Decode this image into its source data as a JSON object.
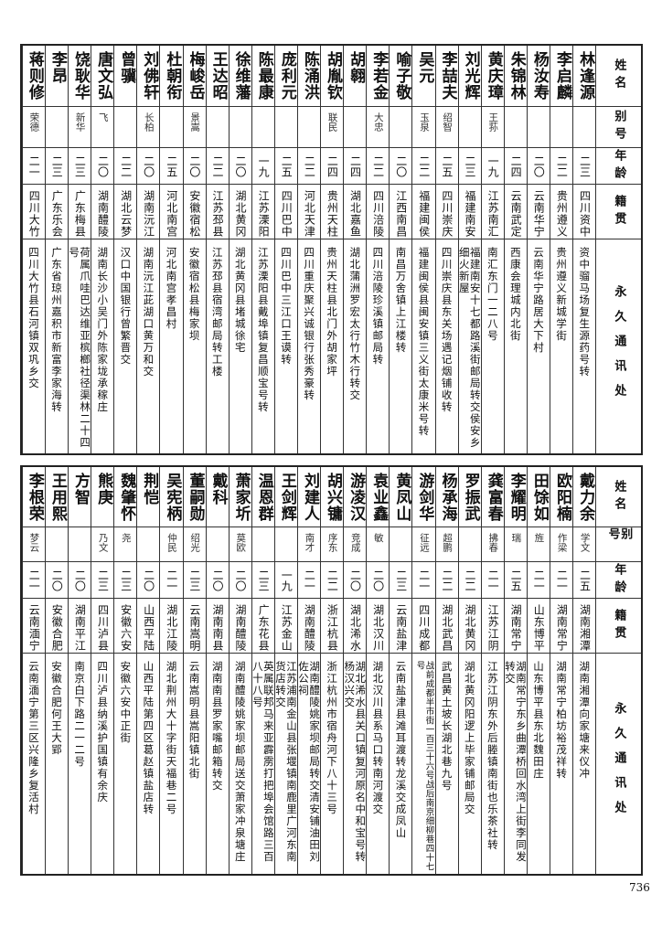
{
  "headers": {
    "name": "姓名",
    "alias": "别号",
    "age": "年龄",
    "origin": "籍贯",
    "address": "永久通讯处"
  },
  "tables": [
    {
      "rows": [
        {
          "name": "林逢源",
          "alias": "",
          "age": "二三",
          "origin": "四川资中",
          "address": "资中骝马场复生源药号转"
        },
        {
          "name": "李启麟",
          "alias": "",
          "age": "二二",
          "origin": "贵州遵义",
          "address": "贵州遵义新城学街"
        },
        {
          "name": "杨汝寿",
          "alias": "",
          "age": "二〇",
          "origin": "云南华宁",
          "address": "云南华宁路居大下村"
        },
        {
          "name": "朱锦林",
          "alias": "",
          "age": "二四",
          "origin": "云南武定",
          "address": "西康会理城内北街"
        },
        {
          "name": "黄庆璋",
          "alias": "王荪",
          "age": "一九",
          "origin": "江苏南汇",
          "address": "南汇东门一二八号"
        },
        {
          "name": "刘光辉",
          "alias": "",
          "age": "二三",
          "origin": "福建南安",
          "address": "福建南安十七都路溪街邮局转交侯安乡细火新屋"
        },
        {
          "name": "李喆夫",
          "alias": "绍智",
          "age": "二五",
          "origin": "四川崇庆",
          "address": "四川崇庆县东关场遇记烟铺收转"
        },
        {
          "name": "吴元",
          "alias": "玉泉",
          "age": "二二",
          "origin": "福建闽侯",
          "address": "福建闽侯县闽安镇三义街太康米号转"
        },
        {
          "name": "喻子敬",
          "alias": "",
          "age": "二〇",
          "origin": "江西南昌",
          "address": "南昌万舍镇上江楼转"
        },
        {
          "name": "李若金",
          "alias": "大忠",
          "age": "二二",
          "origin": "四川涪陵",
          "address": "四川涪陵珍溪镇邮局转"
        },
        {
          "name": "胡翱",
          "alias": "",
          "age": "二四",
          "origin": "湖北嘉鱼",
          "address": "湖北蒲洲罗宏太行竹木行转交"
        },
        {
          "name": "胡胤钦",
          "alias": "联民",
          "age": "二四",
          "origin": "贵州天柱",
          "address": "贵州天柱县北门外胡家坪"
        },
        {
          "name": "陈涌洪",
          "alias": "",
          "age": "二二",
          "origin": "河北天津",
          "address": "四川重庆聚兴诚银行张秀豪转"
        },
        {
          "name": "庞利元",
          "alias": "",
          "age": "二五",
          "origin": "四川巴中",
          "address": "四川巴中三江口王谟转"
        },
        {
          "name": "陈最康",
          "alias": "",
          "age": "一九",
          "origin": "江苏溧阳",
          "address": "江苏溧阳县戴埠镇复昌顺宝号转"
        },
        {
          "name": "徐维藩",
          "alias": "",
          "age": "二〇",
          "origin": "湖北黄冈",
          "address": "湖北黄冈县堵城徐宅"
        },
        {
          "name": "王达昭",
          "alias": "",
          "age": "二二",
          "origin": "江苏邳县",
          "address": "江苏邳县宿湾邮局转工楼"
        },
        {
          "name": "梅峻岳",
          "alias": "景嵩",
          "age": "二〇",
          "origin": "安徽宿松",
          "address": "安徽宿松县梅家坝"
        },
        {
          "name": "杜朝衔",
          "alias": "",
          "age": "二五",
          "origin": "河北南宫",
          "address": "河北南宫孝昌村"
        },
        {
          "name": "刘佛轩",
          "alias": "长柏",
          "age": "二〇",
          "origin": "湖南沅江",
          "address": "湖南沅江茈湖口黄万和交"
        },
        {
          "name": "曾骥",
          "alias": "",
          "age": "二二",
          "origin": "湖北云梦",
          "address": "汉口中国银行曾繁晋交"
        },
        {
          "name": "唐文弘",
          "alias": "飞",
          "age": "二〇",
          "origin": "湖南醴陵",
          "address": "湖南长沙小吴门外陈家垅承稼庄"
        },
        {
          "name": "饶耿华",
          "alias": "新华",
          "age": "二三",
          "origin": "广东梅县",
          "address": "荷属爪哇巴达维亚槟榔社径渠林二十四号"
        },
        {
          "name": "李昂",
          "alias": "",
          "age": "二三",
          "origin": "广东乐会",
          "address": "广东省琼州嘉积市新富李家海转"
        },
        {
          "name": "蒋则修",
          "alias": "荣德",
          "age": "二一",
          "origin": "四川大竹",
          "address": "四川大竹县石河镇双巩乡交"
        }
      ]
    },
    {
      "rows": [
        {
          "name": "戴力余",
          "alias": "学文",
          "age": "二五",
          "origin": "湖南湘潭",
          "address": "湖南湘潭向家塘来仪冲"
        },
        {
          "name": "欧阳楠",
          "alias": "作梁",
          "age": "二一",
          "origin": "湖南常宁",
          "address": "湖南常宁柏坊裕茂祥转"
        },
        {
          "name": "田馀如",
          "alias": "旌",
          "age": "二一",
          "origin": "山东博平",
          "address": "山东博平县东北魏田庄"
        },
        {
          "name": "李耀明",
          "alias": "瑞",
          "age": "二五",
          "origin": "湖南常宁",
          "address": "湖南常宁东乡曲潭桥回水湾上街李同发转交"
        },
        {
          "name": "龚富春",
          "alias": "拂春",
          "age": "二一",
          "origin": "江苏江阴",
          "address": "江苏江阴东外后塍镇南街也乐茶社转"
        },
        {
          "name": "罗振武",
          "alias": "",
          "age": "二二",
          "origin": "湖北黄冈",
          "address": "湖北黄冈阳逻上毕家铺邮局交"
        },
        {
          "name": "杨承海",
          "alias": "超鹏",
          "age": "二二",
          "origin": "湖北武昌",
          "address": "武昌黄土坡长湖北巷九号"
        },
        {
          "name": "游剑华",
          "alias": "征远",
          "age": "二一",
          "origin": "四川成都",
          "address": "战前成都半市街一百三十六号战后南京细柳巷四十七号"
        },
        {
          "name": "黄凤山",
          "alias": "",
          "age": "二三",
          "origin": "云南盐津",
          "address": "云南盐津县滩耳渡转龙溪交成凤山"
        },
        {
          "name": "袁业鑫",
          "alias": "敏",
          "age": "二〇",
          "origin": "湖北汉川",
          "address": "湖北汉川县系马口转南河渡交"
        },
        {
          "name": "游凌汉",
          "alias": "竞成",
          "age": "二〇",
          "origin": "湖北浠水",
          "address": "湖北浠水县关口镇复河原名中和宝号转杨汉兴交"
        },
        {
          "name": "胡兴镛",
          "alias": "序东",
          "age": "二二",
          "origin": "浙江杭县",
          "address": "浙江杭州市宿舟河下八十三号"
        },
        {
          "name": "刘建人",
          "alias": "南才",
          "age": "二一",
          "origin": "湖南醴陵",
          "address": "湖南醴陵姚家坝邮局转交清安铺油田刘佐公祠"
        },
        {
          "name": "王剑辉",
          "alias": "",
          "age": "一九",
          "origin": "江苏金山",
          "address": "江苏浦南金山县张堰镇南鹿里广河东南货店转交"
        },
        {
          "name": "温恩群",
          "alias": "",
          "age": "二三",
          "origin": "广东花县",
          "address": "英属联邦马来亚霹雳打把埠会馆路三百八十八号"
        },
        {
          "name": "萧家圻",
          "alias": "莫欧",
          "age": "二〇",
          "origin": "湖南醴陵",
          "address": "湖南醴陵姚家坝邮局送交萧家冲泉塘庄"
        },
        {
          "name": "戴科",
          "alias": "",
          "age": "二〇",
          "origin": "湖南南县",
          "address": "湖南南县罗家嘴邮箱转交"
        },
        {
          "name": "董嗣勋",
          "alias": "绍光",
          "age": "二三",
          "origin": "云南嵩明",
          "address": "云南嵩明县嵩阳镇北街"
        },
        {
          "name": "吴宪柄",
          "alias": "仲民",
          "age": "二一",
          "origin": "湖北江陵",
          "address": "湖北荆州大十字街天福巷二号"
        },
        {
          "name": "荆恺",
          "alias": "",
          "age": "二〇",
          "origin": "山西平陆",
          "address": "山西平陆第四区葛赵镇盐店转"
        },
        {
          "name": "魏肇怀",
          "alias": "尧",
          "age": "二三",
          "origin": "安徽六安",
          "address": "安徽六安中正街"
        },
        {
          "name": "熊庚",
          "alias": "乃文",
          "age": "二三",
          "origin": "四川泸县",
          "address": "四川泸县纳溪护国镇有余庆"
        },
        {
          "name": "方智",
          "alias": "",
          "age": "二〇",
          "origin": "湖南平江",
          "address": "南京白下路二一二号"
        },
        {
          "name": "王用熙",
          "alias": "",
          "age": "二〇",
          "origin": "安徽合肥",
          "address": "安徽合肥何王大郢"
        },
        {
          "name": "李根荣",
          "alias": "梦云",
          "age": "二一",
          "origin": "云南湎宁",
          "address": "云南湎宁第三区兴隆乡复活村"
        }
      ]
    }
  ],
  "page_number": "736"
}
